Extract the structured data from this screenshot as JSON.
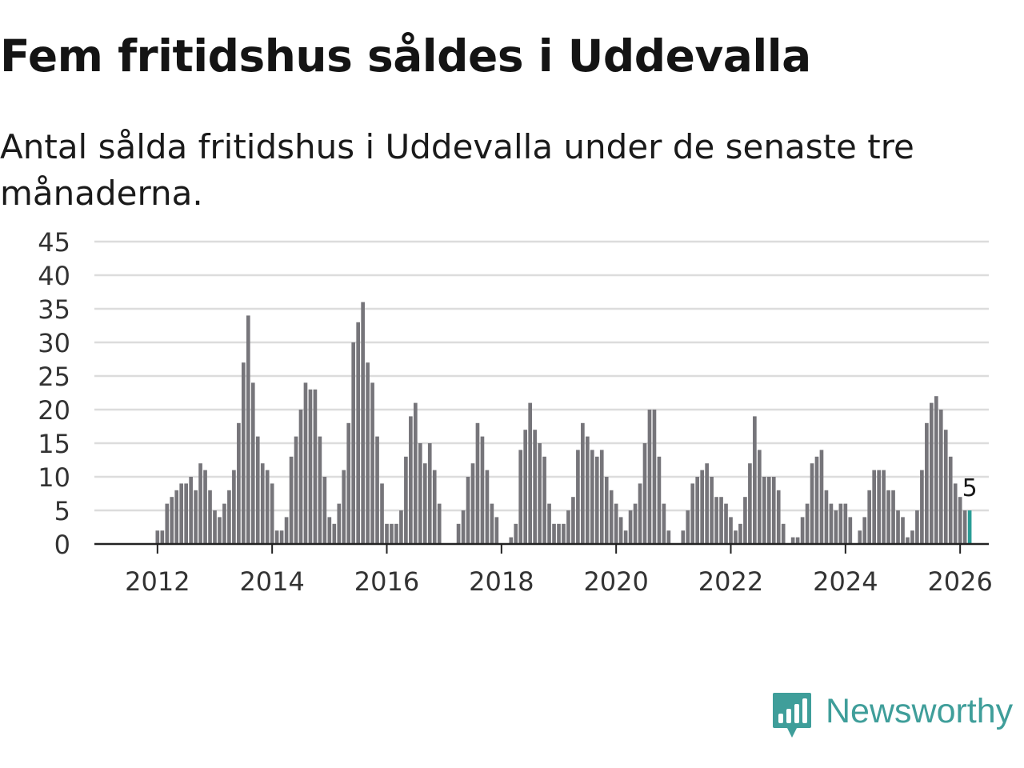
{
  "title": "Fem fritidshus såldes i Uddevalla",
  "subtitle": "Antal sålda fritidshus i Uddevalla under de senaste tre månaderna.",
  "brand": {
    "name": "Newsworthy",
    "color": "#3f9e9a",
    "icon": "newsworthy-logo-icon"
  },
  "colors": {
    "bar": "#76757a",
    "highlight": "#2a9d96",
    "grid": "#dcdcdc",
    "axis": "#222222",
    "text": "#333333"
  },
  "chart_data": {
    "type": "bar",
    "title": "Fem fritidshus såldes i Uddevalla",
    "subtitle": "Antal sålda fritidshus i Uddevalla under de senaste tre månaderna.",
    "xlabel": "",
    "ylabel": "",
    "x_start": "2011-01",
    "x_interval": "month",
    "xlim": [
      2010.9,
      2026.5
    ],
    "ylim": [
      0,
      45
    ],
    "y_ticks": [
      0,
      5,
      10,
      15,
      20,
      25,
      30,
      35,
      40,
      45
    ],
    "x_ticks": [
      2012,
      2014,
      2016,
      2018,
      2020,
      2022,
      2024,
      2026
    ],
    "grid": true,
    "highlight_label": "5",
    "values": [
      0,
      0,
      0,
      0,
      0,
      0,
      0,
      0,
      0,
      0,
      0,
      0,
      2,
      2,
      6,
      7,
      8,
      9,
      9,
      10,
      8,
      12,
      11,
      8,
      5,
      4,
      6,
      8,
      11,
      18,
      27,
      34,
      24,
      16,
      12,
      11,
      9,
      2,
      2,
      4,
      13,
      16,
      20,
      24,
      23,
      23,
      16,
      10,
      4,
      3,
      6,
      11,
      18,
      30,
      33,
      36,
      27,
      24,
      16,
      9,
      3,
      3,
      3,
      5,
      13,
      19,
      21,
      15,
      12,
      15,
      11,
      6,
      0,
      0,
      0,
      3,
      5,
      10,
      12,
      18,
      16,
      11,
      6,
      4,
      0,
      0,
      1,
      3,
      14,
      17,
      21,
      17,
      15,
      13,
      6,
      3,
      3,
      3,
      5,
      7,
      14,
      18,
      16,
      14,
      13,
      14,
      10,
      8,
      6,
      4,
      2,
      5,
      6,
      9,
      15,
      20,
      20,
      13,
      6,
      2,
      0,
      0,
      2,
      5,
      9,
      10,
      11,
      12,
      10,
      7,
      7,
      6,
      4,
      2,
      3,
      7,
      12,
      19,
      14,
      10,
      10,
      10,
      8,
      3,
      0,
      1,
      1,
      4,
      6,
      12,
      13,
      14,
      8,
      6,
      5,
      6,
      6,
      4,
      0,
      2,
      4,
      8,
      11,
      11,
      11,
      8,
      8,
      5,
      4,
      1,
      2,
      5,
      11,
      18,
      21,
      22,
      20,
      17,
      13,
      9,
      7,
      5,
      5
    ]
  }
}
